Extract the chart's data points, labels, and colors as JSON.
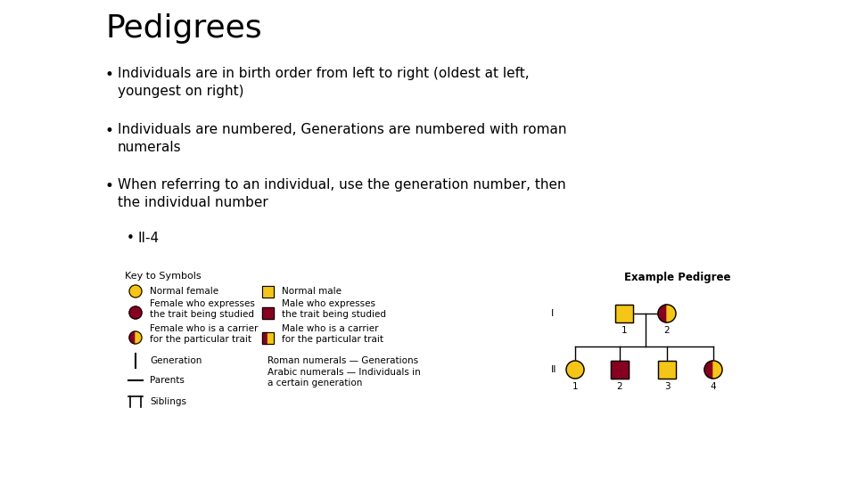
{
  "title": "Pedigrees",
  "bullets": [
    "Individuals are in birth order from left to right (oldest at left,\nyoungest on right)",
    "Individuals are numbered, Generations are numbered with roman\nnumerals",
    "When referring to an individual, use the generation number, then\nthe individual number"
  ],
  "sub_bullet": "II-4",
  "key_title": "Key to Symbols",
  "example_title": "Example Pedigree",
  "bg_color": "#ffffff",
  "title_color": "#000000",
  "yellow": "#F5C518",
  "dark_red": "#880020",
  "title_fontsize": 26,
  "bullet_fontsize": 11,
  "key_fontsize": 7.5,
  "fig_width": 9.6,
  "fig_height": 5.4,
  "dpi": 100
}
